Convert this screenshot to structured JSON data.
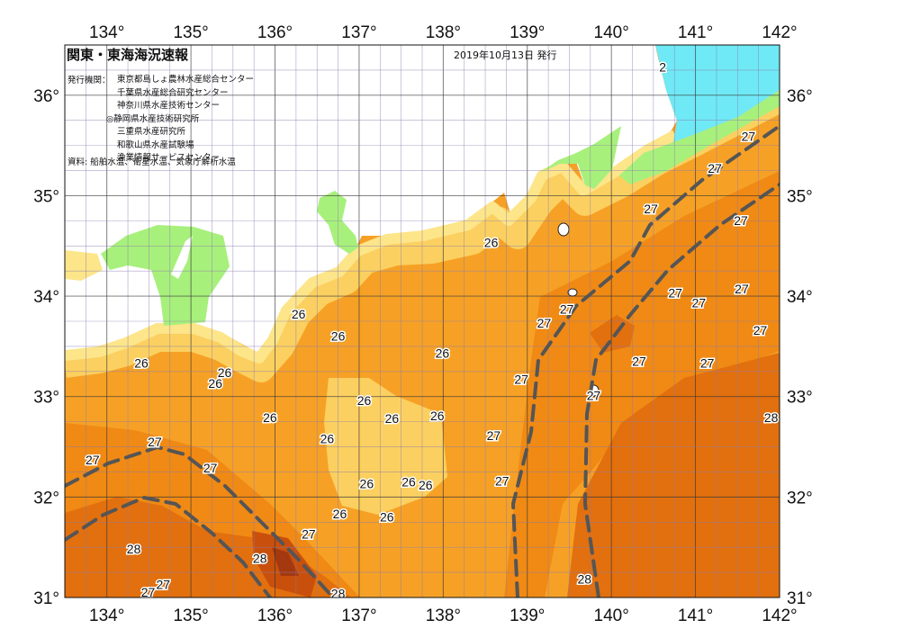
{
  "header": {
    "title": "関東・東海海況速報",
    "issued": "2019年10月13日 発行",
    "issuer_label": "発行機関：",
    "issuers": [
      "東京都島しょ農林水産総合センター",
      "千葉県水産総合研究センター",
      "神奈川県水産技術センター",
      "◎静岡県水産技術研究所",
      "三重県水産研究所",
      "和歌山県水産試験場",
      "漁業情報サービスセンター"
    ],
    "sources": "資料: 船舶水温、衛星水温、気象庁解析水温"
  },
  "map": {
    "lon_range": [
      133.5,
      142
    ],
    "lat_range": [
      31,
      36.5
    ],
    "lon_ticks": [
      "134°",
      "135°",
      "136°",
      "137°",
      "138°",
      "139°",
      "140°",
      "141°",
      "142°"
    ],
    "lat_ticks": [
      "31°",
      "32°",
      "33°",
      "34°",
      "35°",
      "36°"
    ],
    "colors": {
      "land": "#ffffff",
      "cyan": "#6fe9f5",
      "green": "#a8f07c",
      "light_yellow": "#fde58a",
      "yellow": "#fbd060",
      "orange_light": "#f8b742",
      "orange": "#f6a126",
      "orange_dark": "#f08a14",
      "orange_darker": "#e2700e",
      "red_orange": "#c9500c",
      "deep": "#a4380f",
      "kuroshio_axis": "#555555",
      "grid": "#8a7ab0"
    },
    "contour_labels": [
      {
        "t": "2",
        "lon": 140.61,
        "lat": 36.27
      },
      {
        "t": "27",
        "lon": 141.63,
        "lat": 35.58
      },
      {
        "t": "27",
        "lon": 141.23,
        "lat": 35.26
      },
      {
        "t": "27",
        "lon": 140.47,
        "lat": 34.86
      },
      {
        "t": "27",
        "lon": 141.54,
        "lat": 34.74
      },
      {
        "t": "26",
        "lon": 138.57,
        "lat": 34.52
      },
      {
        "t": "27",
        "lon": 140.76,
        "lat": 34.02
      },
      {
        "t": "27",
        "lon": 141.55,
        "lat": 34.06
      },
      {
        "t": "27",
        "lon": 141.04,
        "lat": 33.92
      },
      {
        "t": "26",
        "lon": 136.28,
        "lat": 33.81
      },
      {
        "t": "27",
        "lon": 139.2,
        "lat": 33.72
      },
      {
        "t": "27",
        "lon": 139.47,
        "lat": 33.86
      },
      {
        "t": "27",
        "lon": 141.77,
        "lat": 33.65
      },
      {
        "t": "26",
        "lon": 136.75,
        "lat": 33.59
      },
      {
        "t": "26",
        "lon": 137.99,
        "lat": 33.42
      },
      {
        "t": "27",
        "lon": 140.33,
        "lat": 33.34
      },
      {
        "t": "27",
        "lon": 141.14,
        "lat": 33.32
      },
      {
        "t": "26",
        "lon": 134.41,
        "lat": 33.32
      },
      {
        "t": "26",
        "lon": 135.4,
        "lat": 33.23
      },
      {
        "t": "26",
        "lon": 135.29,
        "lat": 33.12
      },
      {
        "t": "27",
        "lon": 138.93,
        "lat": 33.16
      },
      {
        "t": "27",
        "lon": 139.79,
        "lat": 33.0
      },
      {
        "t": "26",
        "lon": 137.06,
        "lat": 32.95
      },
      {
        "t": "26",
        "lon": 137.39,
        "lat": 32.77
      },
      {
        "t": "26",
        "lon": 137.93,
        "lat": 32.8
      },
      {
        "t": "26",
        "lon": 135.94,
        "lat": 32.78
      },
      {
        "t": "28",
        "lon": 141.9,
        "lat": 32.78
      },
      {
        "t": "27",
        "lon": 138.6,
        "lat": 32.6
      },
      {
        "t": "26",
        "lon": 136.62,
        "lat": 32.57
      },
      {
        "t": "27",
        "lon": 134.57,
        "lat": 32.54
      },
      {
        "t": "27",
        "lon": 133.83,
        "lat": 32.36
      },
      {
        "t": "27",
        "lon": 135.23,
        "lat": 32.28
      },
      {
        "t": "27",
        "lon": 138.7,
        "lat": 32.15
      },
      {
        "t": "26",
        "lon": 137.09,
        "lat": 32.12
      },
      {
        "t": "26",
        "lon": 137.59,
        "lat": 32.14
      },
      {
        "t": "26",
        "lon": 137.79,
        "lat": 32.11
      },
      {
        "t": "26",
        "lon": 136.77,
        "lat": 31.82
      },
      {
        "t": "26",
        "lon": 137.33,
        "lat": 31.79
      },
      {
        "t": "27",
        "lon": 136.4,
        "lat": 31.62
      },
      {
        "t": "28",
        "lon": 134.32,
        "lat": 31.47
      },
      {
        "t": "28",
        "lon": 135.82,
        "lat": 31.38
      },
      {
        "t": "28",
        "lon": 139.68,
        "lat": 31.17
      },
      {
        "t": "27",
        "lon": 134.67,
        "lat": 31.12
      },
      {
        "t": "27",
        "lon": 134.49,
        "lat": 31.04
      },
      {
        "t": "28",
        "lon": 136.75,
        "lat": 31.03
      }
    ]
  }
}
